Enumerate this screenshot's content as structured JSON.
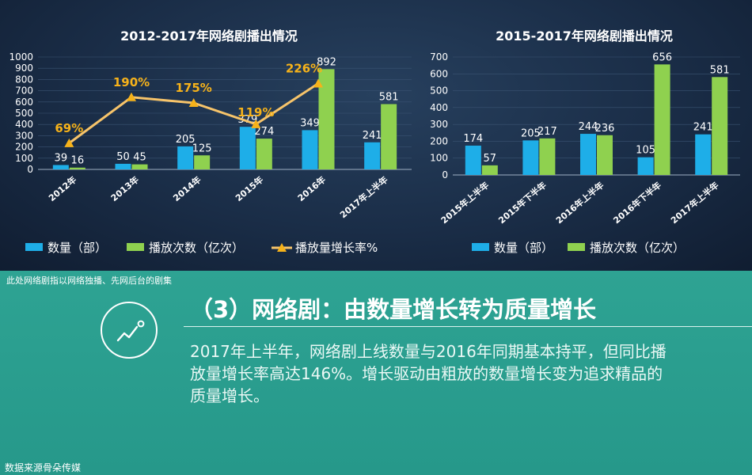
{
  "chart_data": [
    {
      "type": "bar",
      "title": "2012-2017年网络剧播出情况",
      "categories": [
        "2012年",
        "2013年",
        "2014年",
        "2015年",
        "2016年",
        "2017年上半年"
      ],
      "series": [
        {
          "name": "数量（部）",
          "values": [
            39,
            50,
            205,
            379,
            349,
            241
          ],
          "color": "#1eaee8"
        },
        {
          "name": "播放次数（亿次）",
          "values": [
            16,
            45,
            125,
            274,
            892,
            581
          ],
          "color": "#8fd14f"
        }
      ],
      "line_series": {
        "name": "播放量增长率%",
        "x_index": [
          0,
          1,
          2,
          3,
          4
        ],
        "values": [
          69,
          190,
          175,
          119,
          226
        ],
        "labels": [
          "69%",
          "190%",
          "175%",
          "119%",
          "226%"
        ],
        "color": "#f7c46a"
      },
      "bar_labels": [
        [
          "39",
          "50",
          "205",
          "379",
          "349",
          "241"
        ],
        [
          "16",
          "45",
          "125",
          "274",
          "892",
          "581"
        ]
      ],
      "yticks": [
        "0",
        "100",
        "200",
        "300",
        "400",
        "500",
        "600",
        "700",
        "800",
        "900",
        "1000"
      ],
      "ylim": [
        0,
        1000
      ]
    },
    {
      "type": "bar",
      "title": "2015-2017年网络剧播出情况",
      "categories": [
        "2015年上半年",
        "2015年下半年",
        "2016年上半年",
        "2016年下半年",
        "2017年上半年"
      ],
      "series": [
        {
          "name": "数量（部）",
          "values": [
            174,
            205,
            244,
            105,
            241
          ],
          "color": "#1eaee8"
        },
        {
          "name": "播放次数（亿次）",
          "values": [
            57,
            217,
            236,
            656,
            581
          ],
          "color": "#8fd14f"
        }
      ],
      "bar_labels": [
        [
          "174",
          "205",
          "244",
          "105",
          "241"
        ],
        [
          "57",
          "217",
          "236",
          "656",
          "581"
        ]
      ],
      "yticks": [
        "0",
        "100",
        "200",
        "300",
        "400",
        "500",
        "600",
        "700"
      ],
      "ylim": [
        0,
        700
      ]
    }
  ],
  "footnote": "此处网络剧指以网络独播、先网后台的剧集",
  "heading": "（3）网络剧：由数量增长转为质量增长",
  "body": "2017年上半年，网络剧上线数量与2016年同期基本持平，但同比播放量增长率高达146%。增长驱动由粗放的数量增长变为追求精品的质量增长。",
  "source": "数据来源骨朵传媒",
  "icon": "trend-line-icon"
}
